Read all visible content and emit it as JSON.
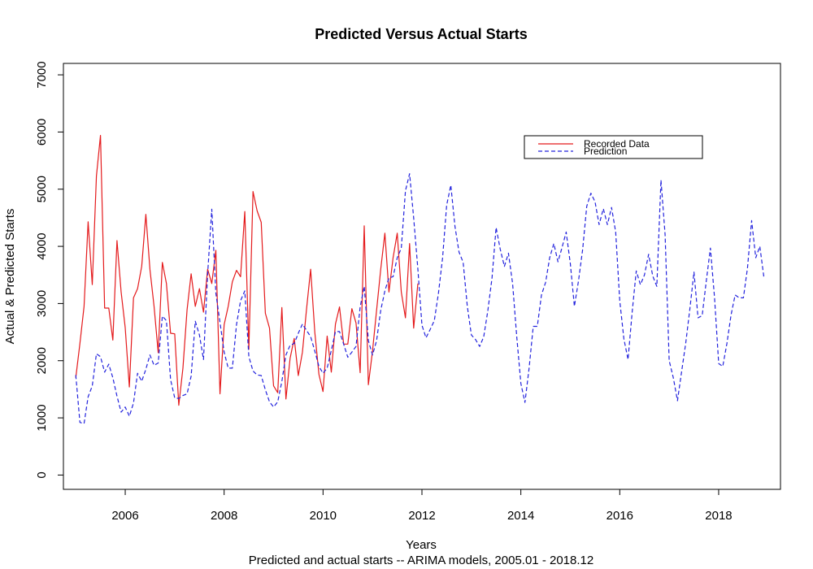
{
  "chart_data": {
    "type": "line",
    "title": "Predicted Versus Actual Starts",
    "xlabel": "Years",
    "subtitle": "Predicted and actual starts -- ARIMA models, 2005.01 - 2018.12",
    "ylabel": "Actual & Predicted Starts",
    "xlim": [
      2004.75,
      2019.25
    ],
    "ylim": [
      -250,
      7200
    ],
    "x_ticks": [
      2006,
      2008,
      2010,
      2012,
      2014,
      2016,
      2018
    ],
    "x_tick_labels": [
      "2006",
      "2008",
      "2010",
      "2012",
      "2014",
      "2016",
      "2018"
    ],
    "y_ticks": [
      0,
      1000,
      2000,
      3000,
      4000,
      5000,
      6000,
      7000
    ],
    "y_tick_labels": [
      "0",
      "1000",
      "2000",
      "3000",
      "4000",
      "5000",
      "6000",
      "7000"
    ],
    "legend_position": "top-right",
    "series": [
      {
        "name": "Recorded Data",
        "color": "#e41a1c",
        "dash": "solid",
        "x": [
          2005.0,
          2005.083,
          2005.167,
          2005.25,
          2005.333,
          2005.417,
          2005.5,
          2005.583,
          2005.667,
          2005.75,
          2005.833,
          2005.917,
          2006.0,
          2006.083,
          2006.167,
          2006.25,
          2006.333,
          2006.417,
          2006.5,
          2006.583,
          2006.667,
          2006.75,
          2006.833,
          2006.917,
          2007.0,
          2007.083,
          2007.167,
          2007.25,
          2007.333,
          2007.417,
          2007.5,
          2007.583,
          2007.667,
          2007.75,
          2007.833,
          2007.917,
          2008.0,
          2008.083,
          2008.167,
          2008.25,
          2008.333,
          2008.417,
          2008.5,
          2008.583,
          2008.667,
          2008.75,
          2008.833,
          2008.917,
          2009.0,
          2009.083,
          2009.167,
          2009.25,
          2009.333,
          2009.417,
          2009.5,
          2009.583,
          2009.667,
          2009.75,
          2009.833,
          2009.917,
          2010.0,
          2010.083,
          2010.167,
          2010.25,
          2010.333,
          2010.417,
          2010.5,
          2010.583,
          2010.667,
          2010.75,
          2010.833,
          2010.917,
          2011.0,
          2011.083,
          2011.167,
          2011.25,
          2011.333,
          2011.417,
          2011.5,
          2011.583,
          2011.667,
          2011.75,
          2011.833,
          2011.917
        ],
        "y": [
          1700,
          2300,
          2950,
          4430,
          3330,
          5230,
          5940,
          2920,
          2920,
          2360,
          4100,
          3200,
          2580,
          1540,
          3100,
          3260,
          3650,
          4560,
          3600,
          2950,
          2140,
          3720,
          3350,
          2480,
          2470,
          1220,
          1870,
          2890,
          3520,
          2950,
          3260,
          2850,
          3600,
          3350,
          3930,
          1420,
          2630,
          2950,
          3380,
          3580,
          3470,
          4610,
          2200,
          4960,
          4620,
          4420,
          2830,
          2570,
          1560,
          1440,
          2930,
          1330,
          2040,
          2390,
          1740,
          2150,
          2910,
          3600,
          2500,
          1760,
          1460,
          2430,
          1800,
          2640,
          2940,
          2290,
          2290,
          2910,
          2660,
          1790,
          4360,
          1580,
          2170,
          2880,
          3600,
          4230,
          3200,
          3800,
          4230,
          3200,
          2750,
          4050,
          2570,
          3350
        ]
      },
      {
        "name": "Prediction",
        "color": "#2222dd",
        "dash": "dashed",
        "x": [
          2005.0,
          2005.083,
          2005.167,
          2005.25,
          2005.333,
          2005.417,
          2005.5,
          2005.583,
          2005.667,
          2005.75,
          2005.833,
          2005.917,
          2006.0,
          2006.083,
          2006.167,
          2006.25,
          2006.333,
          2006.417,
          2006.5,
          2006.583,
          2006.667,
          2006.75,
          2006.833,
          2006.917,
          2007.0,
          2007.083,
          2007.167,
          2007.25,
          2007.333,
          2007.417,
          2007.5,
          2007.583,
          2007.667,
          2007.75,
          2007.833,
          2007.917,
          2008.0,
          2008.083,
          2008.167,
          2008.25,
          2008.333,
          2008.417,
          2008.5,
          2008.583,
          2008.667,
          2008.75,
          2008.833,
          2008.917,
          2009.0,
          2009.083,
          2009.167,
          2009.25,
          2009.333,
          2009.417,
          2009.5,
          2009.583,
          2009.667,
          2009.75,
          2009.833,
          2009.917,
          2010.0,
          2010.083,
          2010.167,
          2010.25,
          2010.333,
          2010.417,
          2010.5,
          2010.583,
          2010.667,
          2010.75,
          2010.833,
          2010.917,
          2011.0,
          2011.083,
          2011.167,
          2011.25,
          2011.333,
          2011.417,
          2011.5,
          2011.583,
          2011.667,
          2011.75,
          2011.833,
          2011.917,
          2012.0,
          2012.083,
          2012.167,
          2012.25,
          2012.333,
          2012.417,
          2012.5,
          2012.583,
          2012.667,
          2012.75,
          2012.833,
          2012.917,
          2013.0,
          2013.083,
          2013.167,
          2013.25,
          2013.333,
          2013.417,
          2013.5,
          2013.583,
          2013.667,
          2013.75,
          2013.833,
          2013.917,
          2014.0,
          2014.083,
          2014.167,
          2014.25,
          2014.333,
          2014.417,
          2014.5,
          2014.583,
          2014.667,
          2014.75,
          2014.833,
          2014.917,
          2015.0,
          2015.083,
          2015.167,
          2015.25,
          2015.333,
          2015.417,
          2015.5,
          2015.583,
          2015.667,
          2015.75,
          2015.833,
          2015.917,
          2016.0,
          2016.083,
          2016.167,
          2016.25,
          2016.333,
          2016.417,
          2016.5,
          2016.583,
          2016.667,
          2016.75,
          2016.833,
          2016.917,
          2017.0,
          2017.083,
          2017.167,
          2017.25,
          2017.333,
          2017.417,
          2017.5,
          2017.583,
          2017.667,
          2017.75,
          2017.833,
          2017.917,
          2018.0,
          2018.083,
          2018.167,
          2018.25,
          2018.333,
          2018.417,
          2018.5,
          2018.583,
          2018.667,
          2018.75,
          2018.833,
          2018.917
        ],
        "y": [
          1750,
          920,
          900,
          1370,
          1560,
          2120,
          2070,
          1800,
          1940,
          1700,
          1380,
          1100,
          1190,
          1030,
          1260,
          1780,
          1640,
          1850,
          2100,
          1920,
          1960,
          2780,
          2700,
          1670,
          1350,
          1340,
          1390,
          1420,
          1730,
          2690,
          2450,
          2020,
          3520,
          4650,
          3180,
          2670,
          2150,
          1870,
          1870,
          2630,
          3050,
          3220,
          2070,
          1820,
          1750,
          1740,
          1490,
          1280,
          1190,
          1280,
          1640,
          2100,
          2270,
          2300,
          2480,
          2640,
          2530,
          2420,
          2170,
          1900,
          1780,
          1870,
          2180,
          2510,
          2510,
          2290,
          2060,
          2150,
          2250,
          2940,
          3300,
          2350,
          2100,
          2350,
          2880,
          3220,
          3450,
          3470,
          3800,
          3970,
          4970,
          5270,
          4500,
          3600,
          2620,
          2400,
          2550,
          2700,
          3180,
          3800,
          4720,
          5070,
          4350,
          3900,
          3720,
          2950,
          2450,
          2370,
          2250,
          2420,
          2880,
          3450,
          4330,
          3950,
          3650,
          3880,
          3350,
          2420,
          1600,
          1270,
          1870,
          2600,
          2600,
          3150,
          3370,
          3800,
          4050,
          3730,
          3980,
          4250,
          3700,
          2950,
          3400,
          3950,
          4700,
          4930,
          4780,
          4380,
          4660,
          4380,
          4680,
          4250,
          3050,
          2380,
          2020,
          2840,
          3570,
          3330,
          3500,
          3860,
          3480,
          3300,
          5160,
          4200,
          2000,
          1700,
          1300,
          1800,
          2300,
          2900,
          3550,
          2750,
          2790,
          3400,
          3970,
          3100,
          1950,
          1900,
          2300,
          2800,
          3150,
          3100,
          3100,
          3620,
          4450,
          3800,
          4000,
          3450
        ]
      }
    ]
  }
}
